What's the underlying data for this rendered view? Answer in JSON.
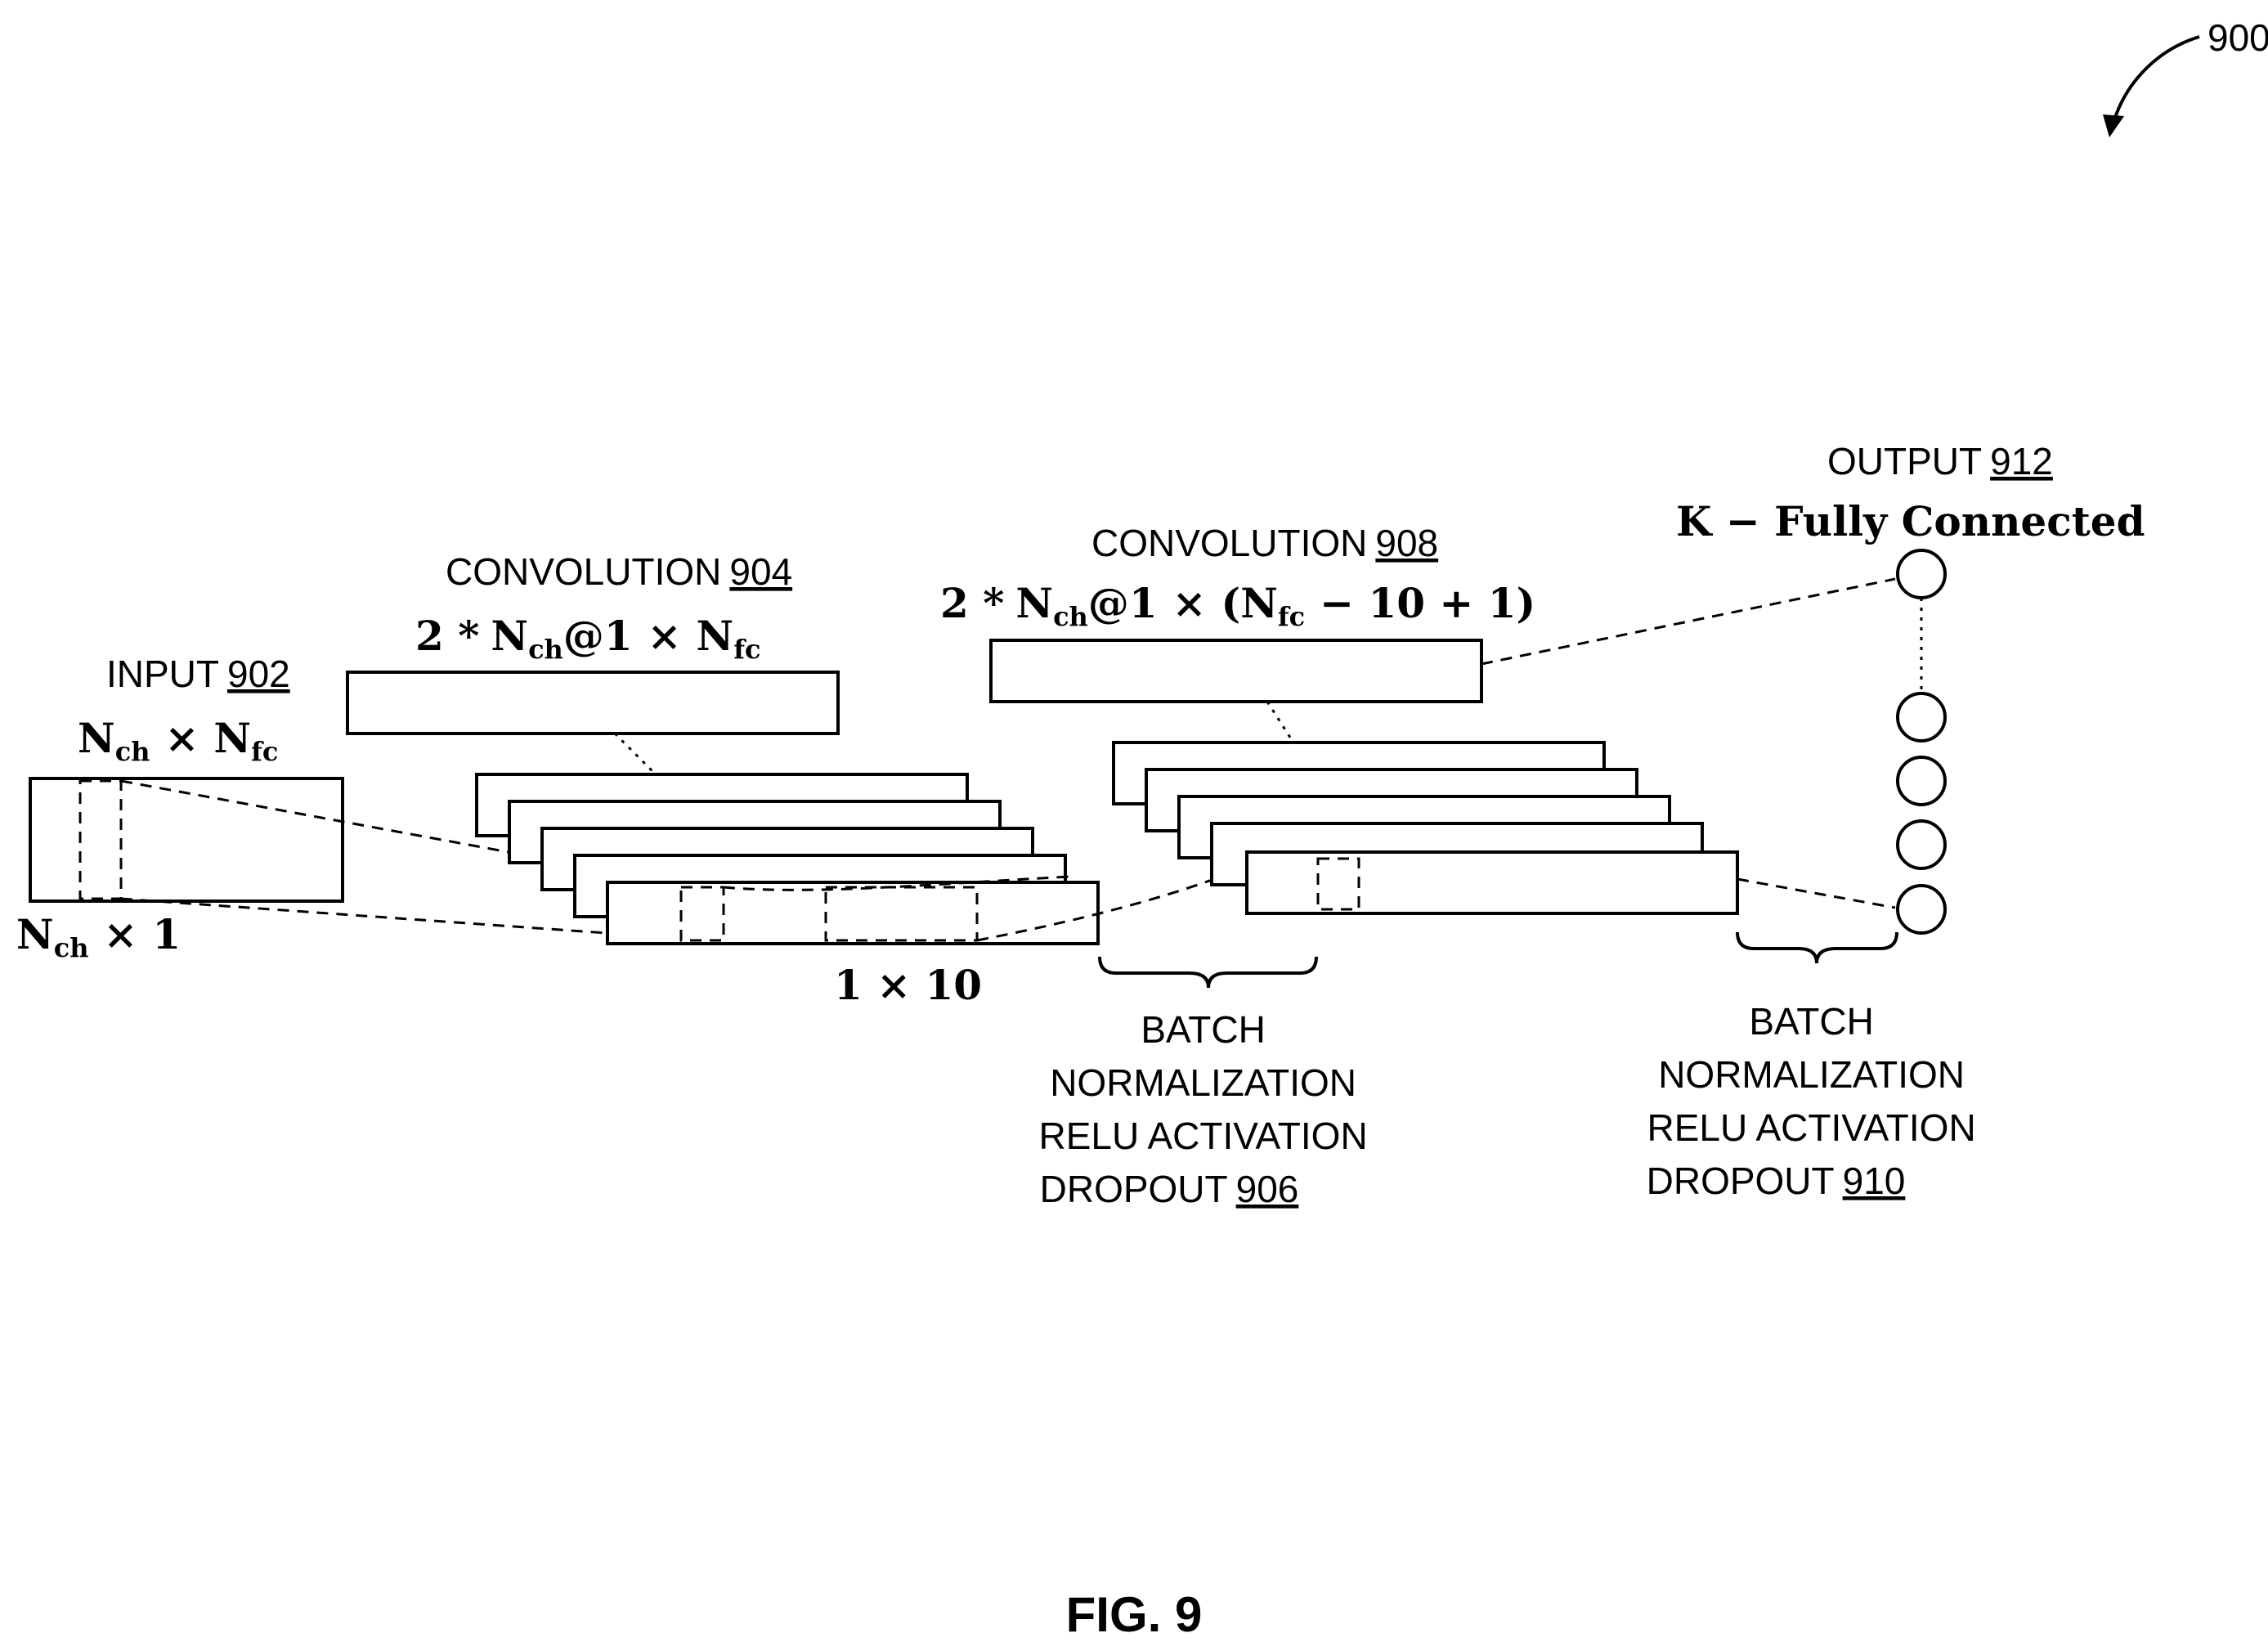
{
  "figure_ref": "900",
  "figure_caption": "FIG. 9",
  "input": {
    "label": "INPUT",
    "ref": "902",
    "size": "ch_fc",
    "window": "ch_1"
  },
  "conv1": {
    "label": "CONVOLUTION",
    "ref": "904",
    "kernel": "1 × 10"
  },
  "bn1": {
    "lines": [
      "BATCH",
      "NORMALIZATION",
      "RELU ACTIVATION",
      "DROPOUT"
    ],
    "ref": "906"
  },
  "conv2": {
    "label": "CONVOLUTION",
    "ref": "908"
  },
  "bn2": {
    "lines": [
      "BATCH",
      "NORMALIZATION",
      "RELU ACTIVATION",
      "DROPOUT"
    ],
    "ref": "910"
  },
  "output": {
    "label": "OUTPUT",
    "ref": "912",
    "desc": "K − Fully  Connected"
  },
  "math": {
    "N": "N",
    "ch": "ch",
    "fc": "fc",
    "times": "×",
    "one": "1",
    "two_star": "2 *",
    "at_one": "@1",
    "paren_open": "(",
    "minus_ten_plus_one": "− 10 + 1)"
  }
}
